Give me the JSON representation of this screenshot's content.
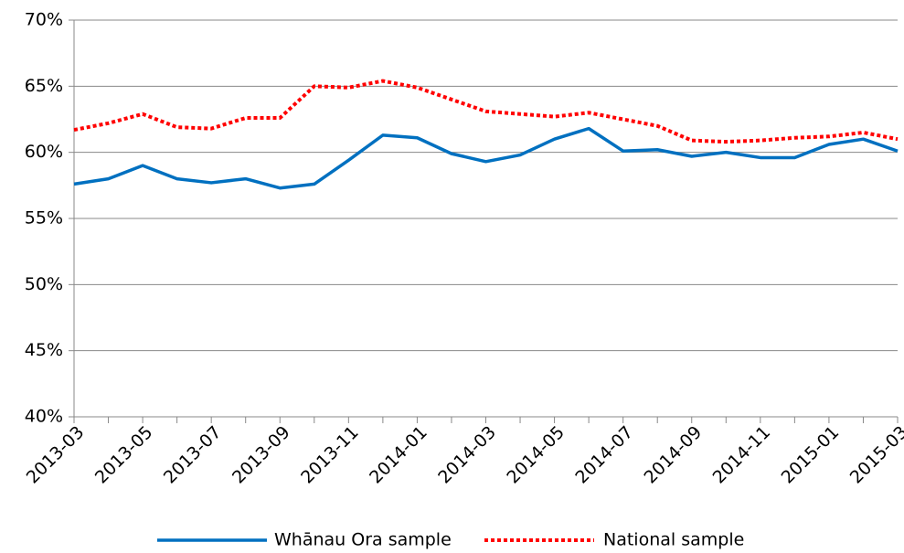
{
  "chart_data": {
    "type": "line",
    "categories": [
      "2013-03",
      null,
      "2013-05",
      null,
      "2013-07",
      null,
      "2013-09",
      null,
      "2013-11",
      null,
      "2014-01",
      null,
      "2014-03",
      null,
      "2014-05",
      null,
      "2014-07",
      null,
      "2014-09",
      null,
      "2014-11",
      null,
      "2015-01",
      null,
      "2015-03"
    ],
    "series": [
      {
        "name": "Whānau Ora sample",
        "color": "#0070c0",
        "style": "solid",
        "values": [
          57.6,
          58.0,
          59.0,
          58.0,
          57.7,
          58.0,
          57.3,
          57.6,
          59.4,
          61.3,
          61.1,
          59.9,
          59.3,
          59.8,
          61.0,
          61.8,
          60.1,
          60.2,
          59.7,
          60.0,
          59.6,
          59.6,
          60.6,
          61.0,
          60.1
        ]
      },
      {
        "name": "National sample",
        "color": "#ff0000",
        "style": "dotted",
        "values": [
          61.7,
          62.2,
          62.9,
          61.9,
          61.8,
          62.6,
          62.6,
          65.0,
          64.9,
          65.4,
          64.9,
          64.0,
          63.1,
          62.9,
          62.7,
          63.0,
          62.5,
          62.0,
          60.9,
          60.8,
          60.9,
          61.1,
          61.2,
          61.5,
          61.0
        ]
      }
    ],
    "ylim": [
      40,
      70
    ],
    "yticks": [
      {
        "value": 40,
        "label": "40%"
      },
      {
        "value": 45,
        "label": "45%"
      },
      {
        "value": 50,
        "label": "50%"
      },
      {
        "value": 55,
        "label": "55%"
      },
      {
        "value": 60,
        "label": "60%"
      },
      {
        "value": 65,
        "label": "65%"
      },
      {
        "value": 70,
        "label": "70%"
      }
    ],
    "grid": true,
    "legend": "bottom"
  }
}
